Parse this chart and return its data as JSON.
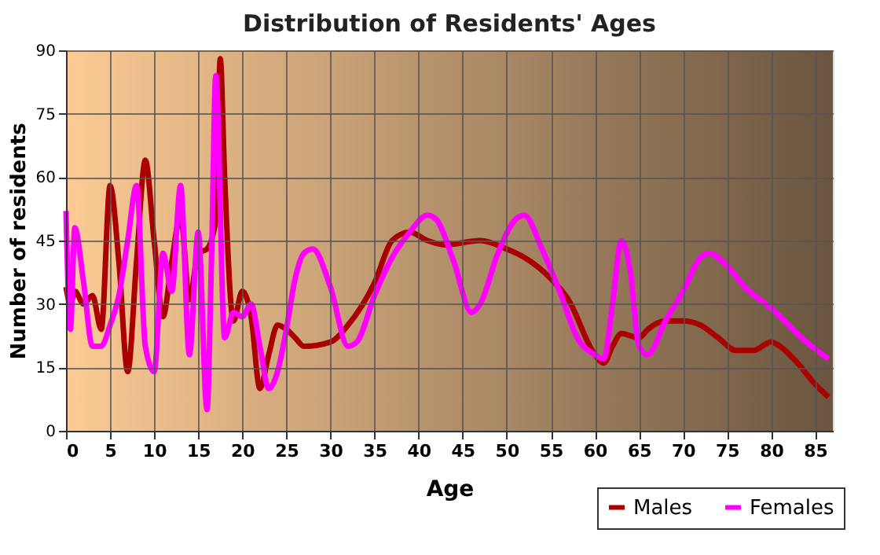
{
  "chart_data": {
    "type": "line",
    "title": "Distribution of Residents' Ages",
    "xlabel": "Age",
    "ylabel": "Number of residents",
    "xlim": [
      0,
      87
    ],
    "xticks": [
      0,
      5,
      10,
      15,
      20,
      25,
      30,
      35,
      40,
      45,
      50,
      55,
      60,
      65,
      70,
      75,
      80,
      85
    ],
    "ylim": [
      0,
      90
    ],
    "yticks": [
      0,
      15,
      30,
      45,
      60,
      75,
      90
    ],
    "grid": true,
    "legend": "bottom right",
    "marker": "none",
    "line_style": "solid",
    "series": [
      {
        "name": "Males",
        "color": "#aa0000",
        "x": [
          0,
          0.5,
          1,
          2,
          3,
          4,
          5,
          6,
          7,
          8,
          9,
          10,
          11,
          12,
          13,
          14,
          15,
          16,
          17,
          17.5,
          18,
          19,
          20,
          21,
          22,
          23,
          24,
          25,
          26,
          27,
          30,
          32,
          35,
          37,
          39,
          41,
          43,
          47,
          50,
          52,
          55,
          57,
          60,
          61,
          62,
          63,
          65,
          66,
          68,
          70,
          72,
          74,
          76,
          78,
          80,
          81,
          83,
          85,
          86.5
        ],
        "values": [
          34,
          30,
          33,
          30,
          32,
          24,
          58,
          40,
          14,
          40,
          64,
          45,
          27,
          40,
          51,
          31,
          42,
          43,
          50,
          88,
          60,
          26,
          33,
          27,
          10,
          18,
          25,
          24,
          22,
          20,
          21,
          25,
          35,
          45,
          47,
          45,
          44,
          45,
          43,
          41,
          36,
          31,
          18,
          16,
          20,
          23,
          22,
          24,
          26,
          26,
          25,
          22,
          19,
          19,
          21,
          20,
          16,
          11,
          8
        ]
      },
      {
        "name": "Females",
        "color": "#ff00ff",
        "x": [
          0,
          0.5,
          1,
          2,
          3,
          4,
          5,
          6,
          7,
          8,
          9,
          10,
          11,
          12,
          13,
          14,
          15,
          16,
          16.5,
          17,
          18,
          19,
          20,
          21,
          22,
          23,
          24,
          25,
          26,
          27,
          28,
          30,
          32,
          33,
          35,
          37,
          39,
          41,
          42,
          44,
          46,
          47,
          49,
          51,
          52,
          54,
          56,
          58,
          60,
          61,
          62,
          63,
          64,
          65,
          66,
          68,
          70,
          72,
          73,
          75,
          77,
          80,
          84,
          86.5
        ],
        "values": [
          52,
          24,
          48,
          35,
          20,
          20,
          25,
          32,
          45,
          58,
          20,
          14,
          42,
          33,
          58,
          18,
          47,
          5,
          40,
          84,
          22,
          28,
          27,
          30,
          20,
          10,
          14,
          24,
          36,
          42,
          43,
          34,
          20,
          21,
          32,
          41,
          47,
          51,
          50,
          40,
          28,
          30,
          42,
          50,
          51,
          43,
          33,
          22,
          18,
          17,
          30,
          45,
          38,
          20,
          18,
          26,
          33,
          41,
          42,
          39,
          34,
          29,
          21,
          17
        ]
      }
    ]
  }
}
